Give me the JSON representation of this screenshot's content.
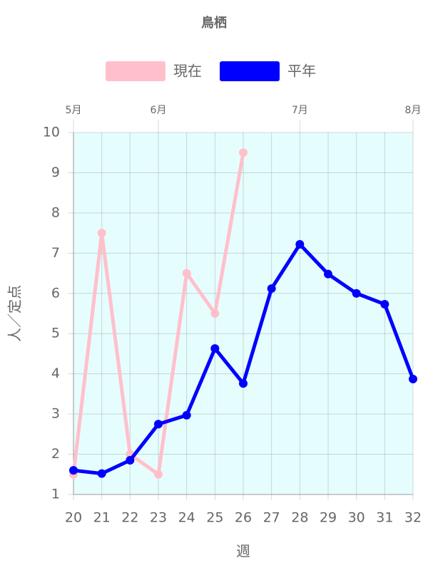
{
  "chart_data": {
    "type": "line",
    "title": "鳥栖",
    "x_label": "週",
    "y_label": "人／定点",
    "x": [
      20,
      21,
      22,
      23,
      24,
      25,
      26,
      27,
      28,
      29,
      30,
      31,
      32
    ],
    "xlim": [
      20,
      32
    ],
    "xticks": [
      20,
      21,
      22,
      23,
      24,
      25,
      26,
      27,
      28,
      29,
      30,
      31,
      32
    ],
    "x2ticks": [
      {
        "value": 20,
        "label": "5月"
      },
      {
        "value": 23,
        "label": "6月"
      },
      {
        "value": 28,
        "label": "7月"
      },
      {
        "value": 32,
        "label": "8月"
      }
    ],
    "ylim": [
      1,
      10
    ],
    "yticks": [
      1,
      2,
      3,
      4,
      5,
      6,
      7,
      8,
      9,
      10
    ],
    "grid": true,
    "legend": "top",
    "background": "#e6fdfd",
    "series": [
      {
        "name": "現在",
        "color": "#ffc0cb",
        "values": [
          1.5,
          7.5,
          2,
          1.5,
          6.5,
          5.5,
          9.5,
          null,
          null,
          null,
          null,
          null,
          null
        ]
      },
      {
        "name": "平年",
        "color": "#0000ff",
        "values": [
          1.6,
          1.52,
          1.85,
          2.75,
          2.97,
          4.63,
          3.76,
          6.12,
          7.22,
          6.48,
          6.0,
          5.73,
          3.87
        ]
      }
    ]
  }
}
